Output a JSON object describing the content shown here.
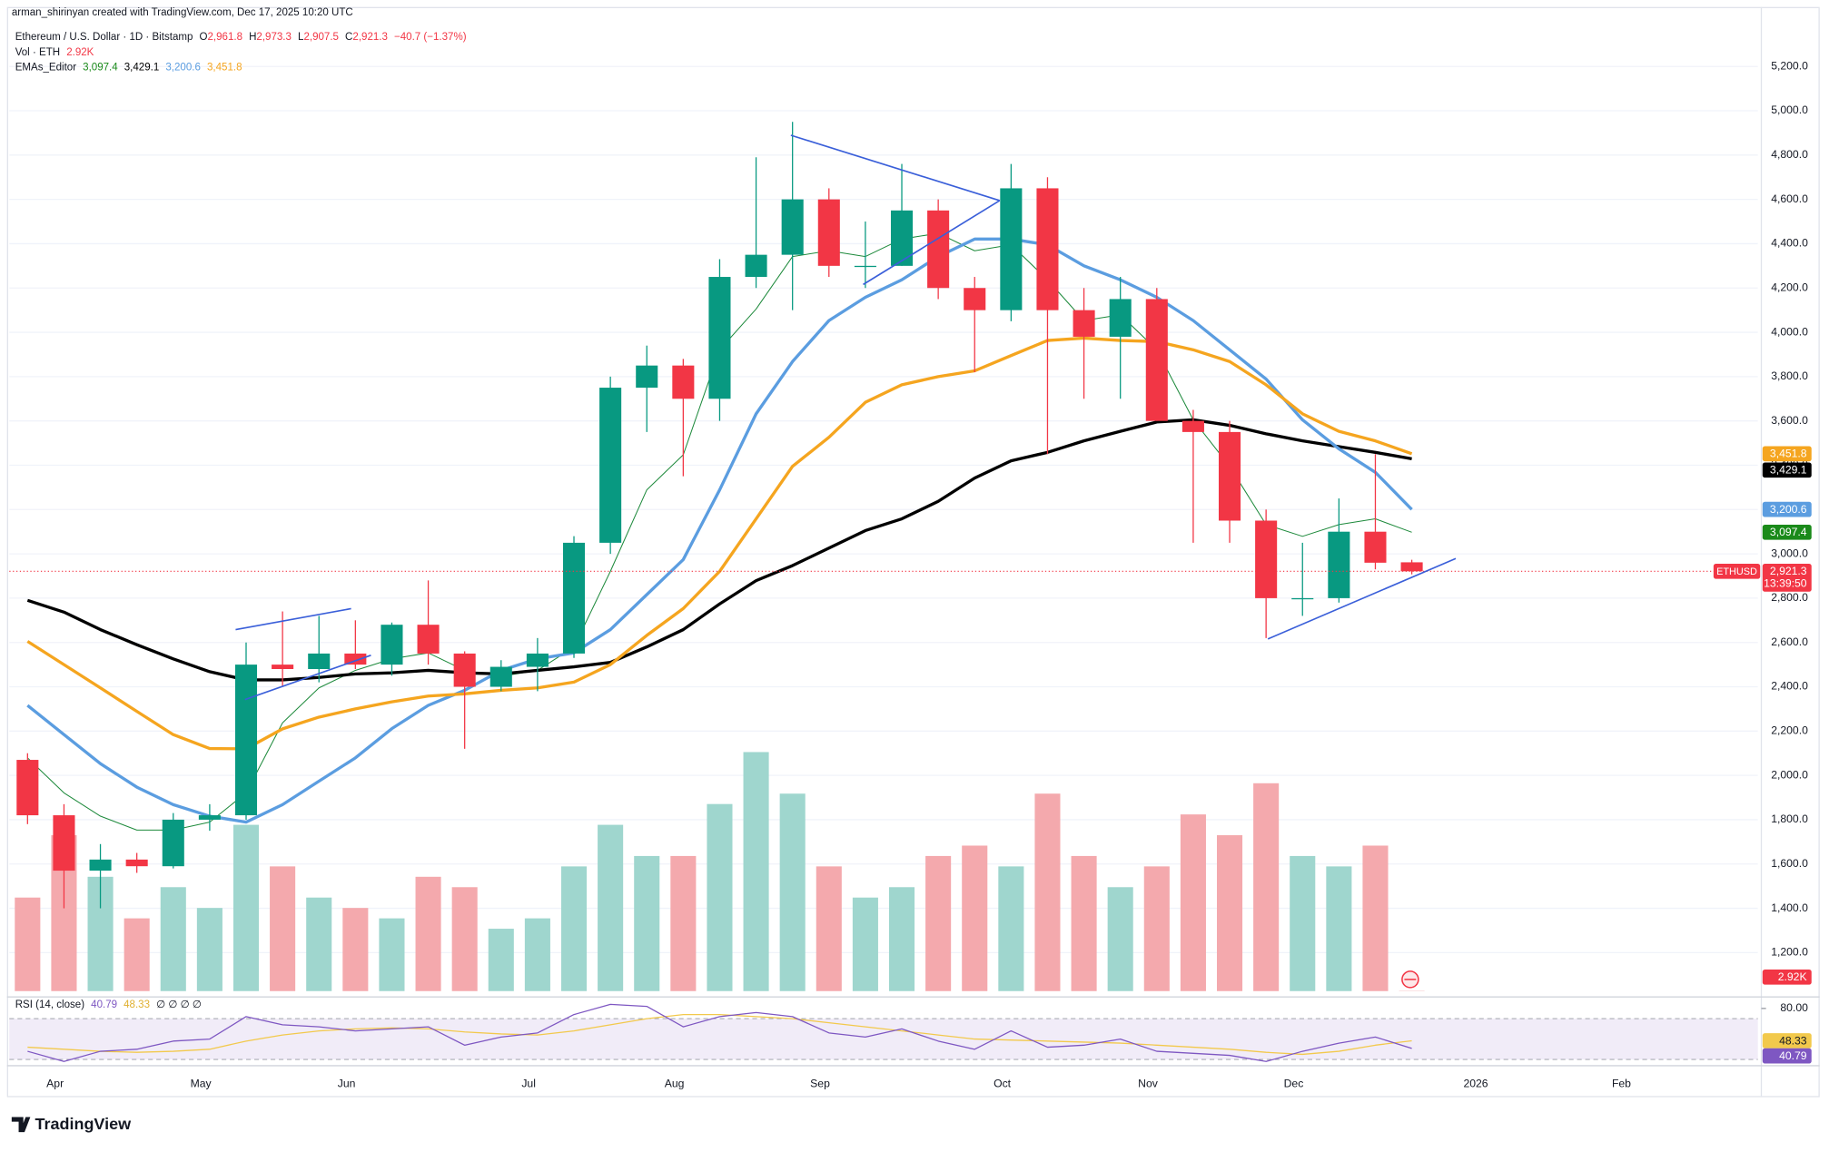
{
  "header": {
    "attribution": "arman_shirinyan created with TradingView.com, Dec 17, 2025 10:20 UTC",
    "symbol": "Ethereum / U.S. Dollar · 1D · Bitstamp",
    "ohlc": [
      {
        "label": "O",
        "value": "2,961.8"
      },
      {
        "label": "H",
        "value": "2,973.3"
      },
      {
        "label": "L",
        "value": "2,907.5"
      },
      {
        "label": "C",
        "value": "2,921.3"
      }
    ],
    "change": "−40.7 (−1.37%)",
    "volume_title": "Vol · ETH",
    "ema_title": "EMAs_Editor",
    "rsi_title": "RSI (14, close)",
    "rsi_extra": "∅ ∅ ∅ ∅",
    "brand": "TradingView"
  },
  "chart_data": {
    "type": "candlestick",
    "categories": [
      null,
      "Apr",
      null,
      null,
      null,
      "May",
      null,
      null,
      null,
      "Jun",
      null,
      null,
      null,
      null,
      "Jul",
      null,
      null,
      null,
      "Aug",
      null,
      null,
      null,
      "Sep",
      null,
      null,
      null,
      null,
      "Oct",
      null,
      null,
      null,
      "Nov",
      null,
      null,
      null,
      "Dec",
      null,
      null,
      null,
      null,
      "2026",
      null,
      null,
      null,
      "Feb",
      null,
      null,
      null
    ],
    "open": [
      2070,
      1820,
      1570,
      1620,
      1590,
      1800,
      1820,
      2500,
      2480,
      2550,
      2500,
      2680,
      2550,
      2400,
      2490,
      2550,
      3050,
      3750,
      3850,
      3700,
      4250,
      4350,
      4600,
      4300,
      4300,
      4550,
      4200,
      4100,
      4650,
      4100,
      3980,
      4150,
      3600,
      3550,
      3150,
      2800,
      2800,
      3100,
      2961.8,
      null,
      null,
      null,
      null,
      null,
      null,
      null,
      null,
      null
    ],
    "high": [
      2100,
      1870,
      1690,
      1650,
      1830,
      1870,
      2600,
      2740,
      2720,
      2700,
      2690,
      2880,
      2560,
      2520,
      2620,
      3080,
      3800,
      3940,
      3880,
      4330,
      4790,
      4950,
      4650,
      4500,
      4760,
      4600,
      4250,
      4760,
      4700,
      4200,
      4250,
      4200,
      3650,
      3600,
      3200,
      3050,
      3250,
      3450,
      2973.3,
      null,
      null,
      null,
      null,
      null,
      null,
      null,
      null,
      null
    ],
    "low": [
      1780,
      1400,
      1400,
      1560,
      1580,
      1750,
      1800,
      2400,
      2420,
      2480,
      2450,
      2500,
      2120,
      2380,
      2380,
      2530,
      3000,
      3550,
      3350,
      3600,
      4200,
      4100,
      4250,
      4200,
      4300,
      4150,
      3820,
      4050,
      3450,
      3700,
      3700,
      3600,
      3050,
      3050,
      2620,
      2720,
      2780,
      2930,
      2907.5,
      null,
      null,
      null,
      null,
      null,
      null,
      null,
      null,
      null
    ],
    "close": [
      1820,
      1570,
      1620,
      1590,
      1800,
      1820,
      2500,
      2480,
      2550,
      2500,
      2680,
      2550,
      2400,
      2490,
      2550,
      3050,
      3750,
      3850,
      3700,
      4250,
      4350,
      4600,
      4300,
      4300,
      4550,
      4200,
      4100,
      4650,
      4100,
      3980,
      4150,
      3600,
      3550,
      3150,
      2800,
      2800,
      3100,
      2960,
      2921.3,
      null,
      null,
      null,
      null,
      null,
      null,
      null,
      null,
      null
    ],
    "up_color": "#089981",
    "down_color": "#f23645",
    "symbol_tag": "ETHUSD",
    "countdown": "13:39:50",
    "ylim": [
      1000,
      5450
    ],
    "yticks": [
      {
        "value": 1200,
        "label": "1,200.0"
      },
      {
        "value": 1400,
        "label": "1,400.0"
      },
      {
        "value": 1600,
        "label": "1,600.0"
      },
      {
        "value": 1800,
        "label": "1,800.0"
      },
      {
        "value": 2000,
        "label": "2,000.0"
      },
      {
        "value": 2200,
        "label": "2,200.0"
      },
      {
        "value": 2400,
        "label": "2,400.0"
      },
      {
        "value": 2600,
        "label": "2,600.0"
      },
      {
        "value": 2800,
        "label": "2,800.0"
      },
      {
        "value": 3000,
        "label": "3,000.0"
      },
      {
        "value": 3200,
        "label": "3,200.0"
      },
      {
        "value": 3400,
        "label": "3,400.0"
      },
      {
        "value": 3600,
        "label": "3,600.0"
      },
      {
        "value": 3800,
        "label": "3,800.0"
      },
      {
        "value": 4000,
        "label": "4,000.0"
      },
      {
        "value": 4200,
        "label": "4,200.0"
      },
      {
        "value": 4400,
        "label": "4,400.0"
      },
      {
        "value": 4600,
        "label": "4,600.0"
      },
      {
        "value": 4800,
        "label": "4,800.0"
      },
      {
        "value": 5000,
        "label": "5,000.0"
      },
      {
        "value": 5200,
        "label": "5,200.0"
      }
    ],
    "grid": true,
    "overlays": [
      {
        "color": "#1e8a3c",
        "width": 0.8,
        "tag_color": "#1a8a1a",
        "last_label": "3,097.4",
        "values": [
          2079,
          1921,
          1816,
          1753,
          1753,
          1789,
          1921,
          2237,
          2395,
          2474,
          2526,
          2553,
          2474,
          2447,
          2474,
          2579,
          2921,
          3289,
          3447,
          3921,
          4105,
          4342,
          4368,
          4342,
          4421,
          4447,
          4368,
          4395,
          4237,
          4053,
          4079,
          3921,
          3605,
          3395,
          3132,
          3079,
          3132,
          3158,
          3097.4,
          null,
          null,
          null,
          null,
          null,
          null,
          null,
          null,
          null
        ]
      },
      {
        "color": "#000000",
        "width": 2.6,
        "tag_color": "#000000",
        "last_label": "3,429.1",
        "values": [
          2790,
          2737,
          2658,
          2590,
          2526,
          2468,
          2431,
          2431,
          2442,
          2458,
          2463,
          2474,
          2463,
          2458,
          2474,
          2490,
          2510,
          2580,
          2658,
          2774,
          2879,
          2947,
          3026,
          3105,
          3158,
          3237,
          3342,
          3420,
          3458,
          3510,
          3553,
          3595,
          3605,
          3580,
          3542,
          3510,
          3484,
          3458,
          3429.1,
          null,
          null,
          null,
          null,
          null,
          null,
          null,
          null,
          null
        ]
      },
      {
        "color": "#5b9de0",
        "width": 2.6,
        "tag_color": "#5b9de0",
        "last_label": "3,200.6",
        "values": [
          2316,
          2184,
          2053,
          1947,
          1868,
          1816,
          1789,
          1868,
          1974,
          2079,
          2211,
          2316,
          2384,
          2474,
          2526,
          2553,
          2658,
          2816,
          2974,
          3289,
          3632,
          3868,
          4053,
          4158,
          4237,
          4342,
          4421,
          4421,
          4395,
          4300,
          4237,
          4158,
          4053,
          3921,
          3789,
          3605,
          3474,
          3368,
          3200.6,
          null,
          null,
          null,
          null,
          null,
          null,
          null,
          null,
          null
        ]
      },
      {
        "color": "#f5a51f",
        "width": 2.6,
        "tag_color": "#f5a51f",
        "last_label": "3,451.8",
        "values": [
          2605,
          2500,
          2395,
          2289,
          2184,
          2121,
          2120,
          2210,
          2263,
          2300,
          2332,
          2358,
          2368,
          2384,
          2395,
          2421,
          2500,
          2632,
          2753,
          2921,
          3158,
          3395,
          3526,
          3684,
          3763,
          3800,
          3826,
          3895,
          3963,
          3974,
          3963,
          3958,
          3921,
          3868,
          3763,
          3632,
          3553,
          3510,
          3451.8,
          null,
          null,
          null,
          null,
          null,
          null,
          null,
          null,
          null
        ]
      }
    ],
    "volume": {
      "up_color": "#9fd6ce",
      "down_color": "#f4a9ad",
      "tag_color": "#f23645",
      "last_label": "2.92K",
      "values": [
        900000,
        1500000,
        1100000,
        700000,
        1000000,
        800000,
        1600000,
        1200000,
        900000,
        800000,
        700000,
        1100000,
        1000000,
        600000,
        700000,
        1200000,
        1600000,
        1300000,
        1300000,
        1800000,
        2300000,
        1900000,
        1200000,
        900000,
        1000000,
        1300000,
        1400000,
        1200000,
        1900000,
        1300000,
        1000000,
        1200000,
        1700000,
        1500000,
        2000000,
        1300000,
        1200000,
        1400000,
        2920,
        null,
        null,
        null,
        null,
        null,
        null,
        null,
        null,
        null
      ]
    },
    "rsi": {
      "ylim": [
        25,
        89
      ],
      "yticks": [
        {
          "value": 80,
          "label": "80.00"
        }
      ],
      "bands": [
        30,
        70
      ],
      "band_color": "#ede7f6",
      "line": {
        "color": "#7e57c2",
        "last_label": "40.79",
        "values": [
          38,
          28,
          38,
          40,
          48,
          50,
          72,
          64,
          62,
          58,
          60,
          62,
          44,
          52,
          56,
          74,
          84,
          82,
          62,
          72,
          76,
          72,
          56,
          52,
          60,
          48,
          40,
          58,
          42,
          44,
          50,
          38,
          36,
          34,
          28,
          38,
          46,
          52,
          40.79,
          null,
          null,
          null,
          null,
          null,
          null,
          null,
          null,
          null
        ]
      },
      "ma": {
        "color": "#f2c94c",
        "last_label": "48.33",
        "values": [
          42,
          40,
          38,
          37,
          38,
          40,
          48,
          54,
          58,
          60,
          61,
          60,
          57,
          55,
          54,
          58,
          64,
          70,
          74,
          74,
          72,
          70,
          66,
          62,
          58,
          54,
          50,
          49,
          48,
          47,
          46,
          44,
          42,
          40,
          37,
          35,
          38,
          44,
          48.33,
          null,
          null,
          null,
          null,
          null,
          null,
          null,
          null,
          null
        ]
      }
    }
  }
}
